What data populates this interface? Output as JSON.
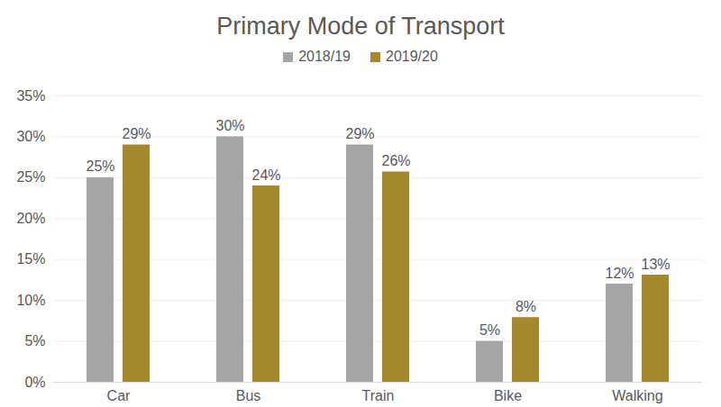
{
  "chart_data": {
    "type": "bar",
    "title": "Primary Mode of Transport",
    "categories": [
      "Car",
      "Bus",
      "Train",
      "Bike",
      "Walking"
    ],
    "series": [
      {
        "name": "2018/19",
        "color": "#a5a5a5",
        "values": [
          25,
          30,
          29,
          5,
          12
        ],
        "value_labels": [
          "25%",
          "30%",
          "29%",
          "5%",
          "12%"
        ]
      },
      {
        "name": "2019/20",
        "color": "#a5882d",
        "values": [
          29,
          24,
          25.7,
          7.9,
          13.1
        ],
        "value_labels": [
          "29%",
          "24%",
          "26%",
          "8%",
          "13%"
        ]
      }
    ],
    "ylim": [
      0,
      35
    ],
    "yticks": [
      {
        "value": 0,
        "label": "0%"
      },
      {
        "value": 5,
        "label": "5%"
      },
      {
        "value": 10,
        "label": "10%"
      },
      {
        "value": 15,
        "label": "15%"
      },
      {
        "value": 20,
        "label": "20%"
      },
      {
        "value": 25,
        "label": "25%"
      },
      {
        "value": 30,
        "label": "30%"
      },
      {
        "value": 35,
        "label": "35%"
      }
    ],
    "grid": true,
    "data_labels": true,
    "legend": "top"
  }
}
